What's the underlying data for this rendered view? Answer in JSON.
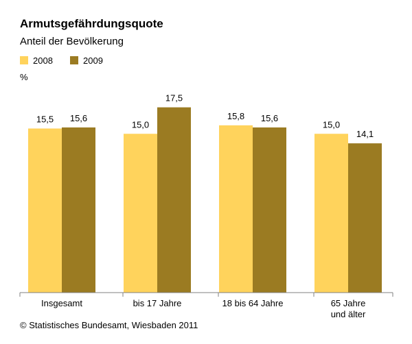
{
  "chart_data": {
    "type": "bar",
    "title": "Armutsgefährdungsquote",
    "subtitle": "Anteil der Bevölkerung",
    "unit": "%",
    "categories": [
      [
        "Insgesamt"
      ],
      [
        "bis 17 Jahre"
      ],
      [
        "18 bis 64 Jahre"
      ],
      [
        "65 Jahre",
        "und älter"
      ]
    ],
    "series": [
      {
        "name": "2008",
        "color": "#FFD35C",
        "values": [
          15.5,
          15.0,
          15.8,
          15.0
        ],
        "labels": [
          "15,5",
          "15,0",
          "15,8",
          "15,0"
        ]
      },
      {
        "name": "2009",
        "color": "#9B7B22",
        "values": [
          15.6,
          17.5,
          15.6,
          14.1
        ],
        "labels": [
          "15,6",
          "17,5",
          "15,6",
          "14,1"
        ]
      }
    ],
    "ylim": [
      0,
      20
    ],
    "grid": false,
    "legend_position": "top-left"
  },
  "footer": {
    "source": "© Statistisches Bundesamt, Wiesbaden 2011"
  }
}
